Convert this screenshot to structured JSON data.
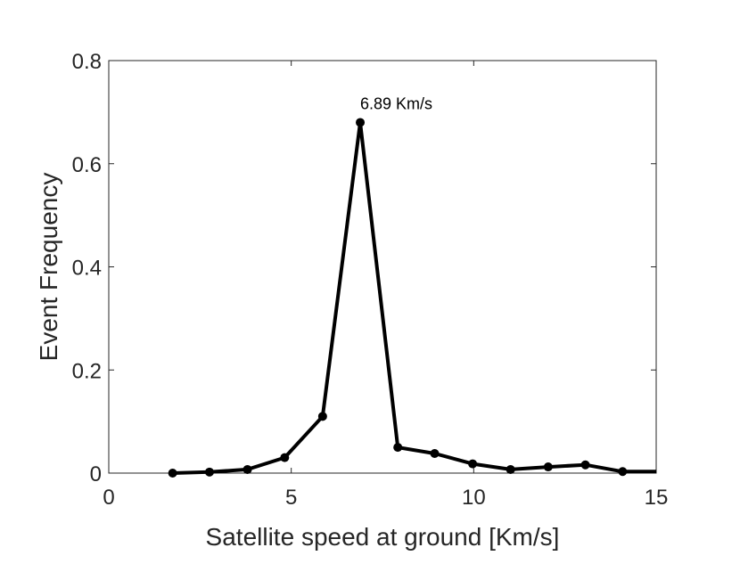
{
  "chart_data": {
    "type": "line",
    "title": "",
    "xlabel": "Satellite speed at ground [Km/s]",
    "ylabel": "Event Frequency",
    "xlim": [
      0,
      15
    ],
    "ylim": [
      0,
      0.8
    ],
    "xticks": [
      0,
      5,
      10,
      15
    ],
    "xtick_labels": [
      "0",
      "5",
      "10",
      "15"
    ],
    "yticks": [
      0,
      0.2,
      0.4,
      0.6,
      0.8
    ],
    "ytick_labels": [
      "0",
      "0.2",
      "0.4",
      "0.6",
      "0.8"
    ],
    "grid": false,
    "legend": null,
    "series": [
      {
        "color": "#000000",
        "marker": "circle",
        "x": [
          1.75,
          2.76,
          3.8,
          4.82,
          5.86,
          6.89,
          7.92,
          8.93,
          9.97,
          11.01,
          12.04,
          13.06,
          14.08,
          15.0
        ],
        "y": [
          0.0,
          0.002,
          0.007,
          0.03,
          0.11,
          0.68,
          0.05,
          0.038,
          0.018,
          0.007,
          0.012,
          0.016,
          0.003,
          0.003
        ],
        "markers_shown": [
          true,
          true,
          true,
          true,
          true,
          true,
          true,
          true,
          true,
          true,
          true,
          true,
          true,
          false
        ]
      }
    ],
    "annotations": [
      {
        "text": "6.89 Km/s",
        "x": 6.89,
        "y": 0.68
      }
    ]
  }
}
